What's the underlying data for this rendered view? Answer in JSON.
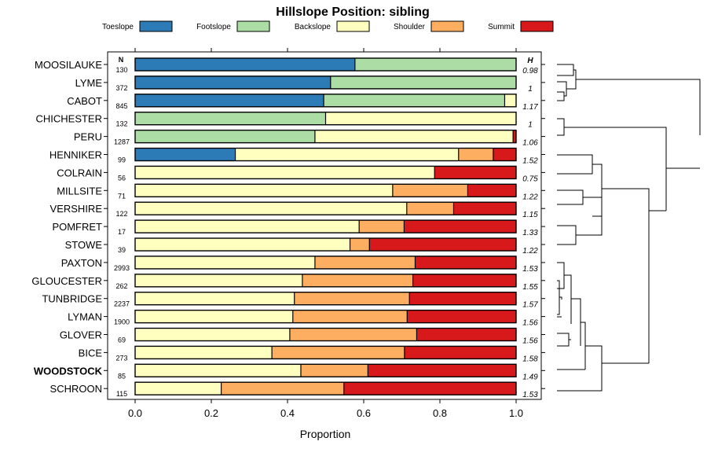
{
  "chart_data": {
    "type": "bar",
    "stacked": true,
    "orientation": "horizontal",
    "title": "Hillslope Position: sibling",
    "xlabel": "Proportion",
    "ylabel": "",
    "xlim": [
      0,
      1
    ],
    "x_ticks": [
      "0.0",
      "0.2",
      "0.4",
      "0.6",
      "0.8",
      "1.0"
    ],
    "legend": {
      "placement": "top",
      "items": [
        {
          "name": "Toeslope",
          "color": "#2c7bb6"
        },
        {
          "name": "Footslope",
          "color": "#abdda4"
        },
        {
          "name": "Backslope",
          "color": "#ffffbf"
        },
        {
          "name": "Shoulder",
          "color": "#fdae61"
        },
        {
          "name": "Summit",
          "color": "#d7191c"
        }
      ]
    },
    "n_header": "N",
    "h_header": "H",
    "highlight": "WOODSTOCK",
    "rows": [
      {
        "name": "MOOSILAUKE",
        "n": "130",
        "h": "0.98",
        "values": [
          0.577,
          0.423,
          0,
          0,
          0
        ]
      },
      {
        "name": "LYME",
        "n": "372",
        "h": "1",
        "values": [
          0.513,
          0.487,
          0,
          0,
          0
        ]
      },
      {
        "name": "CABOT",
        "n": "845",
        "h": "1.17",
        "values": [
          0.495,
          0.475,
          0.03,
          0,
          0
        ]
      },
      {
        "name": "CHICHESTER",
        "n": "132",
        "h": "1",
        "values": [
          0,
          0.5,
          0.5,
          0,
          0
        ]
      },
      {
        "name": "PERU",
        "n": "1287",
        "h": "1.06",
        "values": [
          0,
          0.472,
          0.52,
          0,
          0.008
        ]
      },
      {
        "name": "HENNIKER",
        "n": "99",
        "h": "1.52",
        "values": [
          0.263,
          0,
          0.586,
          0.091,
          0.06
        ]
      },
      {
        "name": "COLRAIN",
        "n": "56",
        "h": "0.75",
        "values": [
          0,
          0,
          0.786,
          0,
          0.214
        ]
      },
      {
        "name": "MILLSITE",
        "n": "71",
        "h": "1.22",
        "values": [
          0,
          0,
          0.676,
          0.197,
          0.127
        ]
      },
      {
        "name": "VERSHIRE",
        "n": "122",
        "h": "1.15",
        "values": [
          0,
          0,
          0.713,
          0.123,
          0.164
        ]
      },
      {
        "name": "POMFRET",
        "n": "17",
        "h": "1.33",
        "values": [
          0,
          0,
          0.588,
          0.118,
          0.294
        ]
      },
      {
        "name": "STOWE",
        "n": "39",
        "h": "1.22",
        "values": [
          0,
          0,
          0.564,
          0.051,
          0.385
        ]
      },
      {
        "name": "PAXTON",
        "n": "2993",
        "h": "1.53",
        "values": [
          0,
          0,
          0.472,
          0.263,
          0.265
        ]
      },
      {
        "name": "GLOUCESTER",
        "n": "262",
        "h": "1.55",
        "values": [
          0,
          0,
          0.439,
          0.29,
          0.271
        ]
      },
      {
        "name": "TUNBRIDGE",
        "n": "2237",
        "h": "1.57",
        "values": [
          0,
          0,
          0.418,
          0.302,
          0.28
        ]
      },
      {
        "name": "LYMAN",
        "n": "1900",
        "h": "1.56",
        "values": [
          0,
          0,
          0.414,
          0.3,
          0.286
        ]
      },
      {
        "name": "GLOVER",
        "n": "69",
        "h": "1.56",
        "values": [
          0,
          0,
          0.406,
          0.333,
          0.261
        ]
      },
      {
        "name": "BICE",
        "n": "273",
        "h": "1.58",
        "values": [
          0,
          0,
          0.359,
          0.348,
          0.293
        ]
      },
      {
        "name": "WOODSTOCK",
        "n": "85",
        "h": "1.49",
        "values": [
          0,
          0,
          0.435,
          0.176,
          0.389
        ]
      },
      {
        "name": "SCHROON",
        "n": "115",
        "h": "1.53",
        "values": [
          0,
          0,
          0.226,
          0.322,
          0.452
        ]
      }
    ]
  }
}
